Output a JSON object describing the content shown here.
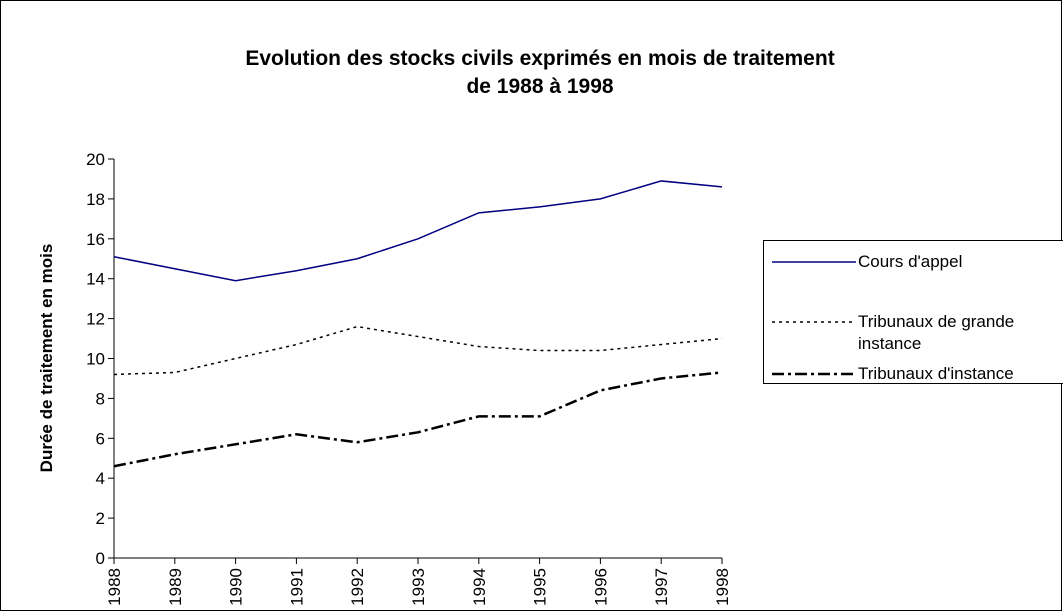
{
  "chart_data": {
    "type": "line",
    "title": "Evolution des stocks civils exprimés en mois de traitement",
    "subtitle": "de 1988 à 1998",
    "y_label": "Durée de traitement en mois",
    "x": [
      1988,
      1989,
      1990,
      1991,
      1992,
      1993,
      1994,
      1995,
      1996,
      1997,
      1998
    ],
    "xlim": [
      1988,
      1998
    ],
    "ylim": [
      0,
      20
    ],
    "yticks": [
      0,
      2,
      4,
      6,
      8,
      10,
      12,
      14,
      16,
      18,
      20
    ],
    "grid": false,
    "legend": "right",
    "series": [
      {
        "name": "Cours d'appel",
        "color": "#000080",
        "dash": "solid",
        "values": [
          15.1,
          14.5,
          13.9,
          14.4,
          15.0,
          16.0,
          17.3,
          17.6,
          18.0,
          18.9,
          18.6
        ]
      },
      {
        "name": "Tribunaux de grande instance",
        "color": "#000000",
        "dash": "dotted",
        "values": [
          9.2,
          9.3,
          10.0,
          10.7,
          11.6,
          11.1,
          10.6,
          10.4,
          10.4,
          10.7,
          11.0
        ]
      },
      {
        "name": "Tribunaux d'instance",
        "color": "#000000",
        "dash": "dashdot",
        "values": [
          4.6,
          5.2,
          5.7,
          6.2,
          5.8,
          6.3,
          7.1,
          7.1,
          8.4,
          9.0,
          9.3
        ]
      }
    ]
  }
}
